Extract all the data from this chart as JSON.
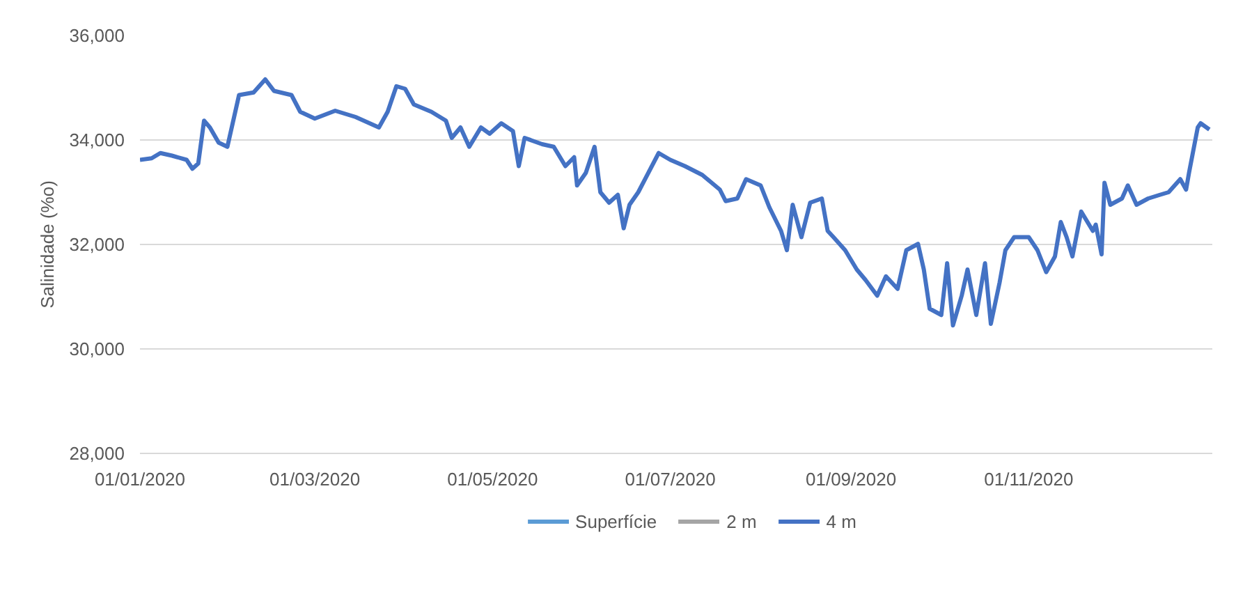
{
  "chart_data": {
    "type": "line",
    "ylabel": "Salinidade (%o)",
    "grid": "y",
    "legend": "bottom",
    "line_style": "solid",
    "xlim": [
      "2020-01-01",
      "2021-01-03"
    ],
    "xticks": [
      {
        "value": "2020-01-01",
        "label": "01/01/2020"
      },
      {
        "value": "2020-03-01",
        "label": "01/03/2020"
      },
      {
        "value": "2020-05-01",
        "label": "01/05/2020"
      },
      {
        "value": "2020-07-01",
        "label": "01/07/2020"
      },
      {
        "value": "2020-09-01",
        "label": "01/09/2020"
      },
      {
        "value": "2020-11-01",
        "label": "01/11/2020"
      }
    ],
    "ylim": [
      28000,
      36000
    ],
    "yticks": [
      {
        "value": 28000,
        "label": "28,000"
      },
      {
        "value": 30000,
        "label": "30,000"
      },
      {
        "value": 32000,
        "label": "32,000"
      },
      {
        "value": 34000,
        "label": "34,000"
      },
      {
        "value": 36000,
        "label": "36,000"
      }
    ],
    "x": [
      "2020-01-01",
      "2020-01-05",
      "2020-01-08",
      "2020-01-12",
      "2020-01-17",
      "2020-01-19",
      "2020-01-21",
      "2020-01-23",
      "2020-01-25",
      "2020-01-28",
      "2020-01-31",
      "2020-02-04",
      "2020-02-09",
      "2020-02-13",
      "2020-02-16",
      "2020-02-22",
      "2020-02-25",
      "2020-03-01",
      "2020-03-08",
      "2020-03-15",
      "2020-03-23",
      "2020-03-26",
      "2020-03-29",
      "2020-04-01",
      "2020-04-04",
      "2020-04-10",
      "2020-04-15",
      "2020-04-17",
      "2020-04-20",
      "2020-04-23",
      "2020-04-27",
      "2020-04-30",
      "2020-05-04",
      "2020-05-08",
      "2020-05-10",
      "2020-05-12",
      "2020-05-18",
      "2020-05-22",
      "2020-05-26",
      "2020-05-29",
      "2020-05-30",
      "2020-06-02",
      "2020-06-05",
      "2020-06-07",
      "2020-06-10",
      "2020-06-13",
      "2020-06-15",
      "2020-06-17",
      "2020-06-20",
      "2020-06-27",
      "2020-07-01",
      "2020-07-06",
      "2020-07-12",
      "2020-07-18",
      "2020-07-20",
      "2020-07-24",
      "2020-07-27",
      "2020-08-01",
      "2020-08-04",
      "2020-08-08",
      "2020-08-10",
      "2020-08-12",
      "2020-08-15",
      "2020-08-18",
      "2020-08-22",
      "2020-08-24",
      "2020-08-26",
      "2020-08-30",
      "2020-09-03",
      "2020-09-06",
      "2020-09-10",
      "2020-09-13",
      "2020-09-17",
      "2020-09-20",
      "2020-09-24",
      "2020-09-26",
      "2020-09-28",
      "2020-10-02",
      "2020-10-04",
      "2020-10-06",
      "2020-10-09",
      "2020-10-11",
      "2020-10-14",
      "2020-10-17",
      "2020-10-19",
      "2020-10-22",
      "2020-10-24",
      "2020-10-27",
      "2020-11-01",
      "2020-11-04",
      "2020-11-07",
      "2020-11-10",
      "2020-11-12",
      "2020-11-14",
      "2020-11-16",
      "2020-11-19",
      "2020-11-23",
      "2020-11-24",
      "2020-11-26",
      "2020-11-27",
      "2020-11-29",
      "2020-12-03",
      "2020-12-05",
      "2020-12-08",
      "2020-12-12",
      "2020-12-16",
      "2020-12-19",
      "2020-12-23",
      "2020-12-25",
      "2020-12-26",
      "2020-12-29",
      "2020-12-30",
      "2021-01-02"
    ],
    "series": [
      {
        "name": "Superfície",
        "color": "#5b9bd5",
        "values": [
          null,
          null,
          null,
          null,
          null,
          null,
          null,
          null,
          null,
          null,
          null,
          null,
          null,
          null,
          null,
          null,
          null,
          null,
          null,
          null,
          null,
          null,
          null,
          null,
          null,
          null,
          null,
          null,
          null,
          null,
          null,
          null,
          null,
          null,
          null,
          null,
          null,
          null,
          null,
          null,
          null,
          null,
          null,
          null,
          null,
          null,
          null,
          null,
          null,
          null,
          null,
          null,
          null,
          null,
          null,
          null,
          null,
          null,
          null,
          null,
          null,
          null,
          null,
          null,
          null,
          null,
          null,
          null,
          null,
          null,
          null,
          null,
          null,
          null,
          null,
          null,
          null,
          null,
          null,
          null,
          null,
          null,
          null,
          null,
          null,
          null,
          null,
          null,
          null,
          null,
          null,
          null,
          null,
          null,
          null,
          null,
          null,
          null,
          null,
          null,
          null,
          null,
          null,
          null,
          null,
          null,
          null,
          null,
          null,
          null,
          null,
          null,
          null
        ]
      },
      {
        "name": "2 m",
        "color": "#a5a5a5",
        "values": [
          null,
          null,
          null,
          null,
          null,
          null,
          null,
          null,
          null,
          null,
          null,
          null,
          null,
          null,
          null,
          null,
          null,
          null,
          null,
          null,
          null,
          null,
          null,
          null,
          null,
          null,
          null,
          null,
          null,
          null,
          null,
          null,
          null,
          null,
          null,
          null,
          null,
          null,
          null,
          null,
          null,
          null,
          null,
          null,
          null,
          null,
          null,
          null,
          null,
          null,
          null,
          null,
          null,
          null,
          null,
          null,
          null,
          null,
          null,
          null,
          null,
          null,
          null,
          null,
          null,
          null,
          null,
          null,
          null,
          null,
          null,
          null,
          null,
          null,
          null,
          null,
          null,
          null,
          null,
          null,
          null,
          null,
          null,
          null,
          null,
          null,
          null,
          null,
          null,
          null,
          null,
          null,
          null,
          null,
          null,
          null,
          null,
          null,
          null,
          null,
          null,
          null,
          null,
          null,
          null,
          null,
          null,
          null,
          null,
          null,
          null,
          null,
          null
        ]
      },
      {
        "name": "4 m",
        "color": "#4472c4",
        "values": [
          33620,
          33650,
          33750,
          33700,
          33620,
          33450,
          33550,
          34370,
          34240,
          33950,
          33870,
          34860,
          34910,
          35160,
          34940,
          34860,
          34540,
          34410,
          34560,
          34440,
          34240,
          34540,
          35030,
          34980,
          34680,
          34540,
          34370,
          34040,
          34240,
          33870,
          34240,
          34120,
          34320,
          34170,
          33500,
          34040,
          33920,
          33870,
          33500,
          33670,
          33130,
          33370,
          33870,
          33000,
          32800,
          32950,
          32310,
          32760,
          33000,
          33750,
          33620,
          33500,
          33330,
          33050,
          32830,
          32880,
          33250,
          33130,
          32710,
          32260,
          31890,
          32760,
          32140,
          32800,
          32880,
          32260,
          32140,
          31890,
          31520,
          31320,
          31020,
          31390,
          31150,
          31890,
          32010,
          31520,
          30770,
          30650,
          31640,
          30450,
          31020,
          31520,
          30650,
          31640,
          30480,
          31270,
          31890,
          32140,
          32140,
          31890,
          31470,
          31770,
          32430,
          32140,
          31770,
          32630,
          32260,
          32380,
          31810,
          33180,
          32760,
          32880,
          33130,
          32760,
          32880,
          32950,
          33000,
          33250,
          33050,
          33370,
          34240,
          34320,
          34200
        ]
      }
    ]
  }
}
